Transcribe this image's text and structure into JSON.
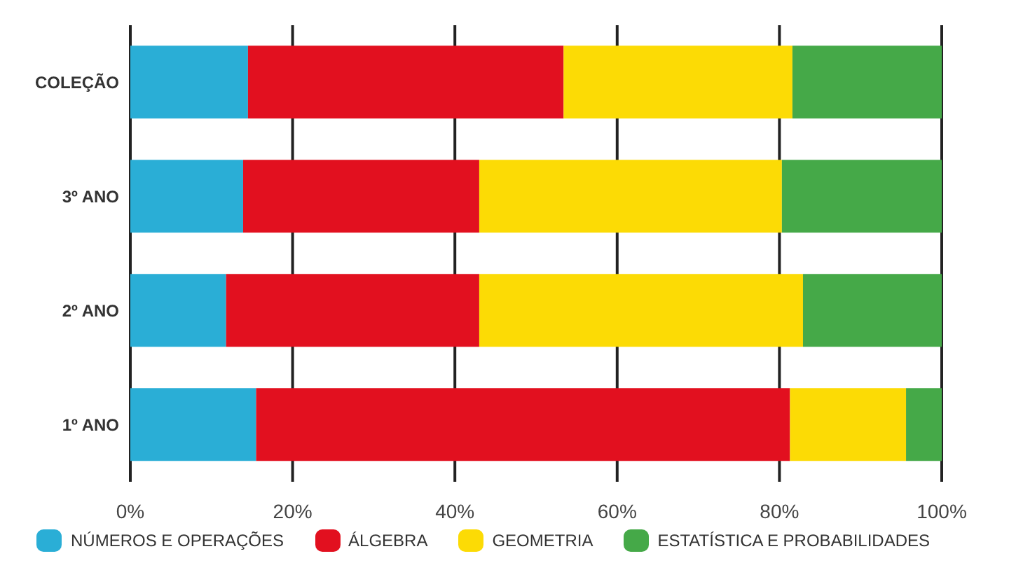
{
  "chart_data": {
    "type": "bar",
    "orientation": "horizontal",
    "stacked": true,
    "categories": [
      "COLEÇÃO",
      "3º ANO",
      "2º ANO",
      "1º ANO"
    ],
    "series": [
      {
        "name": "NÚMEROS E OPERAÇÕES",
        "color": "#2aaed6",
        "values": [
          14.5,
          13.9,
          11.8,
          15.5
        ]
      },
      {
        "name": "ÁLGEBRA",
        "color": "#e2101f",
        "values": [
          38.9,
          29.1,
          31.2,
          65.8
        ]
      },
      {
        "name": "GEOMETRIA",
        "color": "#fcdb05",
        "values": [
          28.2,
          37.3,
          39.9,
          14.3
        ]
      },
      {
        "name": "ESTATÍSTICA E PROBABILIDADES",
        "color": "#45a948",
        "values": [
          18.4,
          19.7,
          17.1,
          4.4
        ]
      }
    ],
    "xlim": [
      0,
      100
    ],
    "xticks": [
      {
        "value": 0,
        "label": "0%"
      },
      {
        "value": 20,
        "label": "20%"
      },
      {
        "value": 40,
        "label": "40%"
      },
      {
        "value": 60,
        "label": "60%"
      },
      {
        "value": 80,
        "label": "80%"
      },
      {
        "value": 100,
        "label": "100%"
      }
    ],
    "grid": "x",
    "legend": "bottom"
  }
}
